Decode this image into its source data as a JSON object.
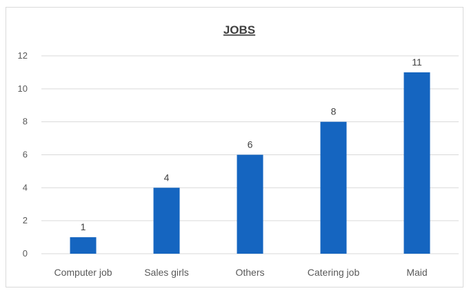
{
  "chart_data": {
    "type": "bar",
    "title": "JOBS",
    "categories": [
      "Computer job",
      "Sales girls",
      "Others",
      "Catering job",
      "Maid"
    ],
    "values": [
      1,
      4,
      6,
      8,
      11
    ],
    "xlabel": "",
    "ylabel": "",
    "ylim": [
      0,
      12
    ],
    "yticks": [
      0,
      2,
      4,
      6,
      8,
      10,
      12
    ],
    "grid": true,
    "legend": "none",
    "bar_color": "#1565c0",
    "grid_color": "#d9d9d9",
    "data_labels": [
      "1",
      "4",
      "6",
      "8",
      "11"
    ]
  }
}
